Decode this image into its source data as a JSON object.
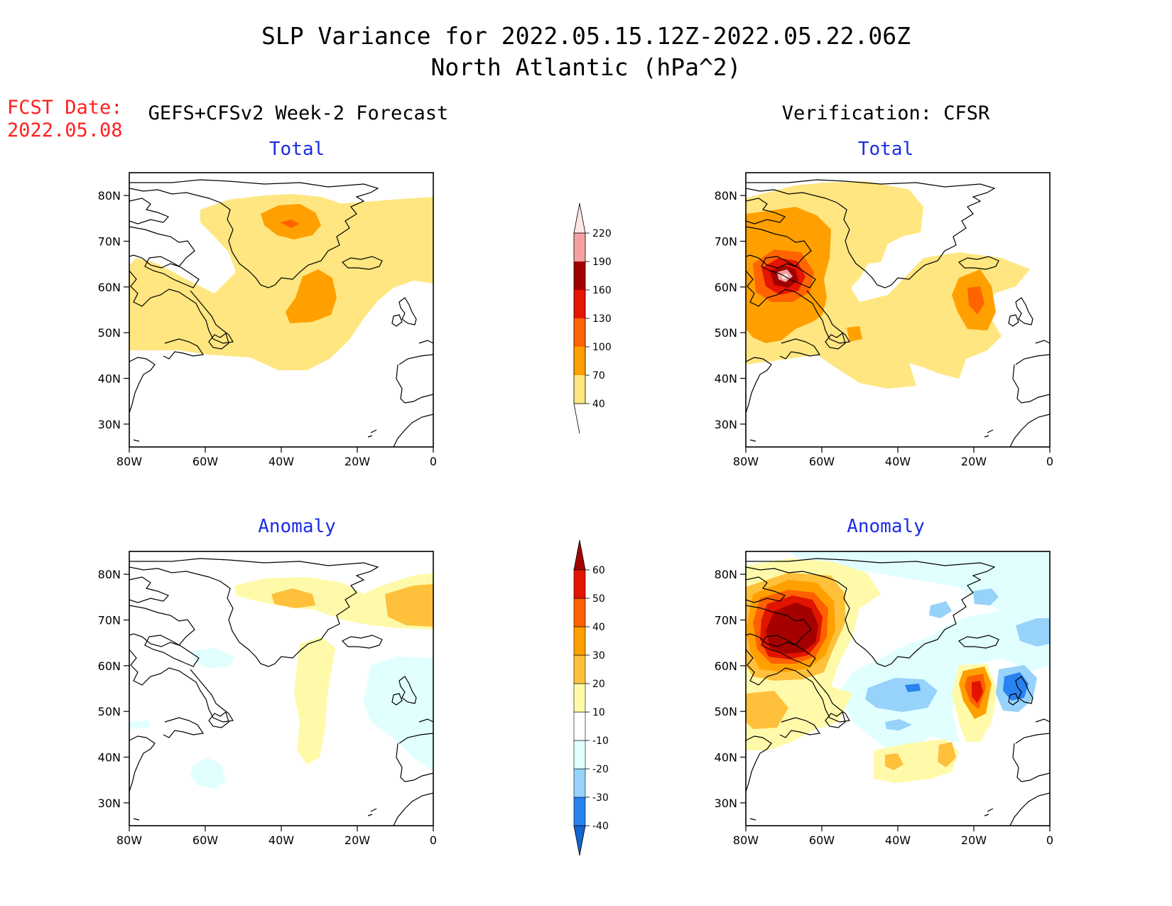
{
  "title": "SLP Variance for 2022.05.15.12Z-2022.05.22.06Z",
  "subtitle": "North Atlantic (hPa^2)",
  "fcst_label": "FCST Date:",
  "fcst_date": "2022.05.08",
  "left_header": "GEFS+CFSv2 Week-2 Forecast",
  "right_header": "Verification: CFSR",
  "panel_titles": {
    "fc_total": "Total",
    "vf_total": "Total",
    "fc_anom": "Anomaly",
    "vf_anom": "Anomaly"
  },
  "lat_labels": [
    "80N",
    "70N",
    "60N",
    "50N",
    "40N",
    "30N"
  ],
  "lon_labels": [
    "80W",
    "60W",
    "40W",
    "20W",
    "0"
  ],
  "colorbar_total": {
    "levels": [
      "40",
      "70",
      "100",
      "130",
      "160",
      "190",
      "220"
    ],
    "colors": [
      "#ffe680",
      "#ffa000",
      "#ff6400",
      "#e61400",
      "#a00000",
      "#f5a0a0",
      "#ffe6e6"
    ]
  },
  "colorbar_anomaly": {
    "levels": [
      "-40",
      "-30",
      "-20",
      "-10",
      "10",
      "20",
      "30",
      "40",
      "50",
      "60"
    ],
    "colors": [
      "#1464d2",
      "#2882f0",
      "#96d2fa",
      "#e1ffff",
      "#ffffff",
      "#fffaaa",
      "#ffc03c",
      "#ffa000",
      "#ff6000",
      "#e11400",
      "#a50000"
    ]
  },
  "map_data": {
    "region": "North Atlantic",
    "lon_range": [
      -80,
      0
    ],
    "lat_range": [
      25,
      85
    ],
    "fields": [
      {
        "panel": "fc_total",
        "source": "GEFS+CFSv2 Week-2 Forecast",
        "max_level": "100",
        "notes": "40-70 broad band 45-80N; 70-100 near 75N 40W and 55N 32W"
      },
      {
        "panel": "vf_total",
        "source": "CFSR",
        "max_level": "220",
        "notes": "max near 62N 70W (Hudson Bay region); secondary 70-100 near 55N 22W"
      },
      {
        "panel": "fc_anom",
        "source": "GEFS+CFSv2 Week-2 Forecast",
        "notes": "weak +10 to +30 anomalies north; weak negative west of Ireland"
      },
      {
        "panel": "vf_anom",
        "source": "CFSR",
        "notes": "+60 over Hudson Bay / Labrador; +50 near 55N 22W; -30 to -40 near 58N 10W and 57N 43W"
      }
    ]
  }
}
